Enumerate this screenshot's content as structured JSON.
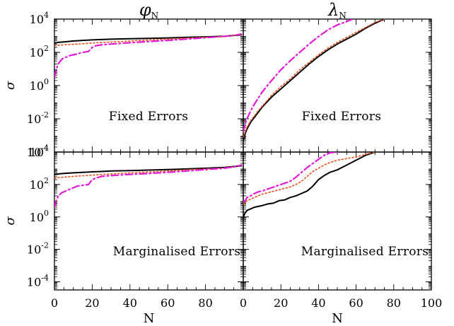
{
  "colors": {
    "axes": "#000000",
    "solid": "#000000",
    "dotted": "#e8501e",
    "dashdot": "#e41bd6"
  },
  "chart_data": [
    {
      "type": "line",
      "title": {
        "symbol": "φ",
        "subscript": "N"
      },
      "ylabel": "σ",
      "xlabel": "",
      "xlim": [
        0,
        100
      ],
      "ylim_log10": [
        -4,
        4
      ],
      "y_scale": "log",
      "x_ticks": [],
      "y_ticks": [
        {
          "base": "10",
          "exp": "4"
        },
        {
          "base": "10",
          "exp": "2"
        },
        {
          "base": "10",
          "exp": "0"
        },
        {
          "base": "10",
          "exp": "-2"
        },
        {
          "base": "10",
          "exp": "-4"
        }
      ],
      "annotation": "Fixed Errors",
      "series": [
        {
          "style": "solid",
          "x": [
            0,
            2,
            5,
            10,
            15,
            20,
            25,
            30,
            40,
            50,
            60,
            70,
            80,
            90,
            99
          ],
          "log10_y": [
            2.55,
            2.6,
            2.63,
            2.68,
            2.72,
            2.75,
            2.77,
            2.79,
            2.82,
            2.84,
            2.87,
            2.9,
            2.93,
            2.97,
            3.05
          ]
        },
        {
          "style": "dotted",
          "x": [
            0,
            5,
            10,
            15,
            20,
            30,
            40,
            50,
            60,
            70,
            80,
            90,
            99
          ],
          "log10_y": [
            2.4,
            2.45,
            2.48,
            2.52,
            2.56,
            2.62,
            2.68,
            2.74,
            2.8,
            2.86,
            2.9,
            2.95,
            3.08
          ]
        },
        {
          "style": "dashdot",
          "x": [
            0,
            1,
            2,
            4,
            6,
            8,
            10,
            12,
            15,
            18,
            20,
            22,
            25,
            30,
            40,
            50,
            60,
            70,
            80,
            90,
            95,
            99
          ],
          "log10_y": [
            0.5,
            1.0,
            1.3,
            1.6,
            1.7,
            1.8,
            1.85,
            1.9,
            2.0,
            2.05,
            2.3,
            2.4,
            2.45,
            2.5,
            2.58,
            2.65,
            2.72,
            2.8,
            2.88,
            2.96,
            3.02,
            3.1
          ]
        }
      ]
    },
    {
      "type": "line",
      "title": {
        "symbol": "λ",
        "subscript": "N"
      },
      "ylabel": "",
      "xlabel": "",
      "xlim": [
        0,
        100
      ],
      "ylim_log10": [
        -4,
        4
      ],
      "y_scale": "log",
      "x_ticks": [],
      "y_ticks": [],
      "annotation": "Fixed Errors",
      "series": [
        {
          "style": "solid",
          "x": [
            0,
            1,
            2,
            4,
            6,
            8,
            10,
            15,
            20,
            25,
            30,
            35,
            40,
            45,
            50,
            55,
            60,
            65,
            70,
            75
          ],
          "log10_y": [
            -3.3,
            -2.9,
            -2.6,
            -2.2,
            -1.9,
            -1.6,
            -1.3,
            -0.7,
            -0.2,
            0.3,
            0.8,
            1.3,
            1.75,
            2.15,
            2.5,
            2.8,
            3.1,
            3.45,
            3.75,
            4.0
          ]
        },
        {
          "style": "dotted",
          "x": [
            0,
            1,
            2,
            4,
            6,
            8,
            10,
            15,
            20,
            25,
            30,
            35,
            40,
            45,
            50,
            55,
            60,
            65,
            70,
            75
          ],
          "log10_y": [
            -3.1,
            -2.8,
            -2.5,
            -2.1,
            -1.8,
            -1.5,
            -1.25,
            -0.6,
            -0.05,
            0.4,
            0.95,
            1.4,
            1.85,
            2.25,
            2.6,
            2.9,
            3.2,
            3.5,
            3.8,
            4.0
          ]
        },
        {
          "style": "dashdot",
          "x": [
            0,
            1,
            2,
            4,
            6,
            8,
            10,
            15,
            20,
            25,
            30,
            35,
            40,
            45,
            50,
            55,
            58
          ],
          "log10_y": [
            -2.8,
            -2.3,
            -2.0,
            -1.5,
            -1.1,
            -0.75,
            -0.4,
            0.3,
            0.95,
            1.5,
            2.0,
            2.5,
            2.95,
            3.35,
            3.65,
            3.85,
            4.0
          ]
        }
      ]
    },
    {
      "type": "line",
      "title": "",
      "ylabel": "σ",
      "xlabel": "N",
      "xlim": [
        0,
        100
      ],
      "ylim_log10": [
        -4.5,
        4
      ],
      "y_scale": "log",
      "x_ticks": [
        "0",
        "20",
        "40",
        "60",
        "80"
      ],
      "y_ticks": [
        {
          "base": "10",
          "exp": "4"
        },
        {
          "base": "10",
          "exp": "2"
        },
        {
          "base": "10",
          "exp": "0"
        },
        {
          "base": "10",
          "exp": "-2"
        },
        {
          "base": "10",
          "exp": "-4"
        }
      ],
      "annotation": "Marginalised Errors",
      "series": [
        {
          "style": "solid",
          "x": [
            0,
            2,
            5,
            10,
            15,
            20,
            25,
            30,
            40,
            50,
            60,
            70,
            80,
            90,
            99
          ],
          "log10_y": [
            2.6,
            2.65,
            2.68,
            2.72,
            2.75,
            2.78,
            2.8,
            2.83,
            2.86,
            2.89,
            2.92,
            2.96,
            3.0,
            3.05,
            3.15
          ]
        },
        {
          "style": "dotted",
          "x": [
            0,
            5,
            10,
            15,
            20,
            30,
            40,
            50,
            60,
            70,
            80,
            90,
            99
          ],
          "log10_y": [
            2.4,
            2.45,
            2.5,
            2.54,
            2.58,
            2.65,
            2.71,
            2.77,
            2.83,
            2.9,
            2.96,
            3.02,
            3.15
          ]
        },
        {
          "style": "dashdot",
          "x": [
            0,
            1,
            2,
            4,
            6,
            8,
            10,
            12,
            15,
            18,
            20,
            22,
            25,
            30,
            40,
            50,
            60,
            70,
            80,
            90,
            95,
            99
          ],
          "log10_y": [
            0.6,
            1.0,
            1.3,
            1.5,
            1.6,
            1.7,
            1.8,
            1.9,
            1.95,
            2.0,
            2.3,
            2.4,
            2.5,
            2.55,
            2.62,
            2.68,
            2.75,
            2.83,
            2.92,
            3.0,
            3.08,
            3.2
          ]
        }
      ]
    },
    {
      "type": "line",
      "title": "",
      "ylabel": "",
      "xlabel": "N",
      "xlim": [
        0,
        100
      ],
      "ylim_log10": [
        -4.5,
        4
      ],
      "y_scale": "log",
      "x_ticks": [
        "0",
        "20",
        "40",
        "60",
        "80",
        "100"
      ],
      "y_ticks": [],
      "annotation": "Marginalised Errors",
      "series": [
        {
          "style": "solid",
          "x": [
            0,
            1,
            2,
            4,
            6,
            8,
            10,
            13,
            16,
            19,
            22,
            25,
            28,
            31,
            34,
            37,
            40,
            43,
            46,
            50,
            55,
            60,
            65,
            70
          ],
          "log10_y": [
            0.0,
            0.25,
            0.4,
            0.5,
            0.6,
            0.65,
            0.7,
            0.8,
            0.85,
            1.0,
            1.05,
            1.2,
            1.3,
            1.45,
            1.6,
            1.9,
            2.3,
            2.55,
            2.75,
            2.9,
            3.2,
            3.5,
            3.8,
            4.0
          ]
        },
        {
          "style": "dotted",
          "x": [
            0,
            1,
            2,
            4,
            6,
            8,
            10,
            15,
            20,
            25,
            28,
            31,
            34,
            37,
            40,
            43,
            46,
            50,
            55,
            60,
            65,
            70
          ],
          "log10_y": [
            0.8,
            0.9,
            1.0,
            1.1,
            1.2,
            1.3,
            1.4,
            1.55,
            1.7,
            1.85,
            2.0,
            2.2,
            2.5,
            2.8,
            3.0,
            3.2,
            3.35,
            3.5,
            3.6,
            3.7,
            3.85,
            4.0
          ]
        },
        {
          "style": "dashdot",
          "x": [
            0,
            1,
            2,
            4,
            6,
            8,
            10,
            15,
            20,
            25,
            28,
            31,
            34,
            37,
            40,
            43,
            46,
            50
          ],
          "log10_y": [
            0.9,
            1.0,
            1.2,
            1.3,
            1.45,
            1.55,
            1.6,
            1.8,
            2.0,
            2.2,
            2.45,
            2.75,
            3.05,
            3.3,
            3.55,
            3.8,
            3.95,
            4.0
          ]
        }
      ]
    }
  ]
}
